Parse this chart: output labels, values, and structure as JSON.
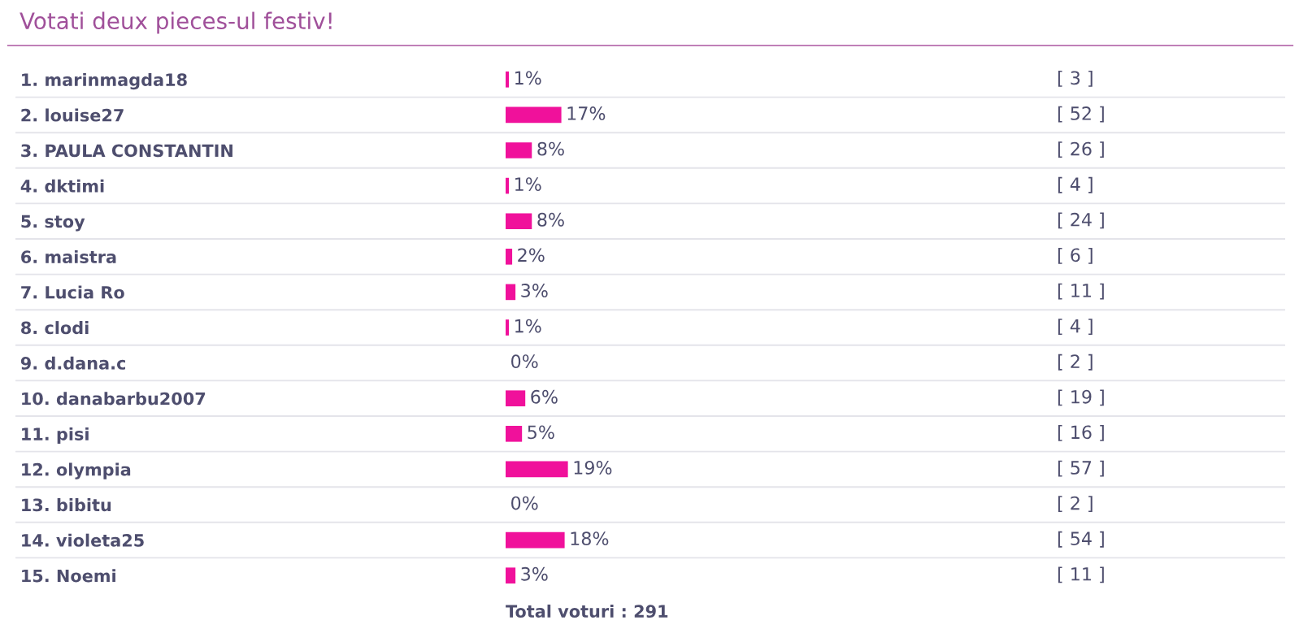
{
  "chart_data": {
    "type": "bar",
    "orientation": "horizontal",
    "title": "Votati deux pieces-ul festiv!",
    "categories": [
      "1. marinmagda18",
      "2. louise27",
      "3. PAULA CONSTANTIN",
      "4. dktimi",
      "5. stoy",
      "6. maistra",
      "7. Lucia Ro",
      "8. clodi",
      "9. d.dana.c",
      "10. danabarbu2007",
      "11. pisi",
      "12. olympia",
      "13. bibitu",
      "14. violeta25",
      "15. Noemi"
    ],
    "values": [
      1,
      17,
      8,
      1,
      8,
      2,
      3,
      1,
      0,
      6,
      5,
      19,
      0,
      18,
      3
    ],
    "value_labels": [
      "1%",
      "17%",
      "8%",
      "1%",
      "8%",
      "2%",
      "3%",
      "1%",
      "0%",
      "6%",
      "5%",
      "19%",
      "0%",
      "18%",
      "3%"
    ],
    "color": "#f0119b",
    "annotations": [
      "[ 3 ]",
      "[ 52 ]",
      "[ 26 ]",
      "[ 4 ]",
      "[ 24 ]",
      "[ 6 ]",
      "[ 11 ]",
      "[ 4 ]",
      "[ 2 ]",
      "[ 19 ]",
      "[ 16 ]",
      "[ 57 ]",
      "[ 2 ]",
      "[ 54 ]",
      "[ 11 ]",
      "Total voturi : 291"
    ],
    "tick_labels": "y"
  }
}
